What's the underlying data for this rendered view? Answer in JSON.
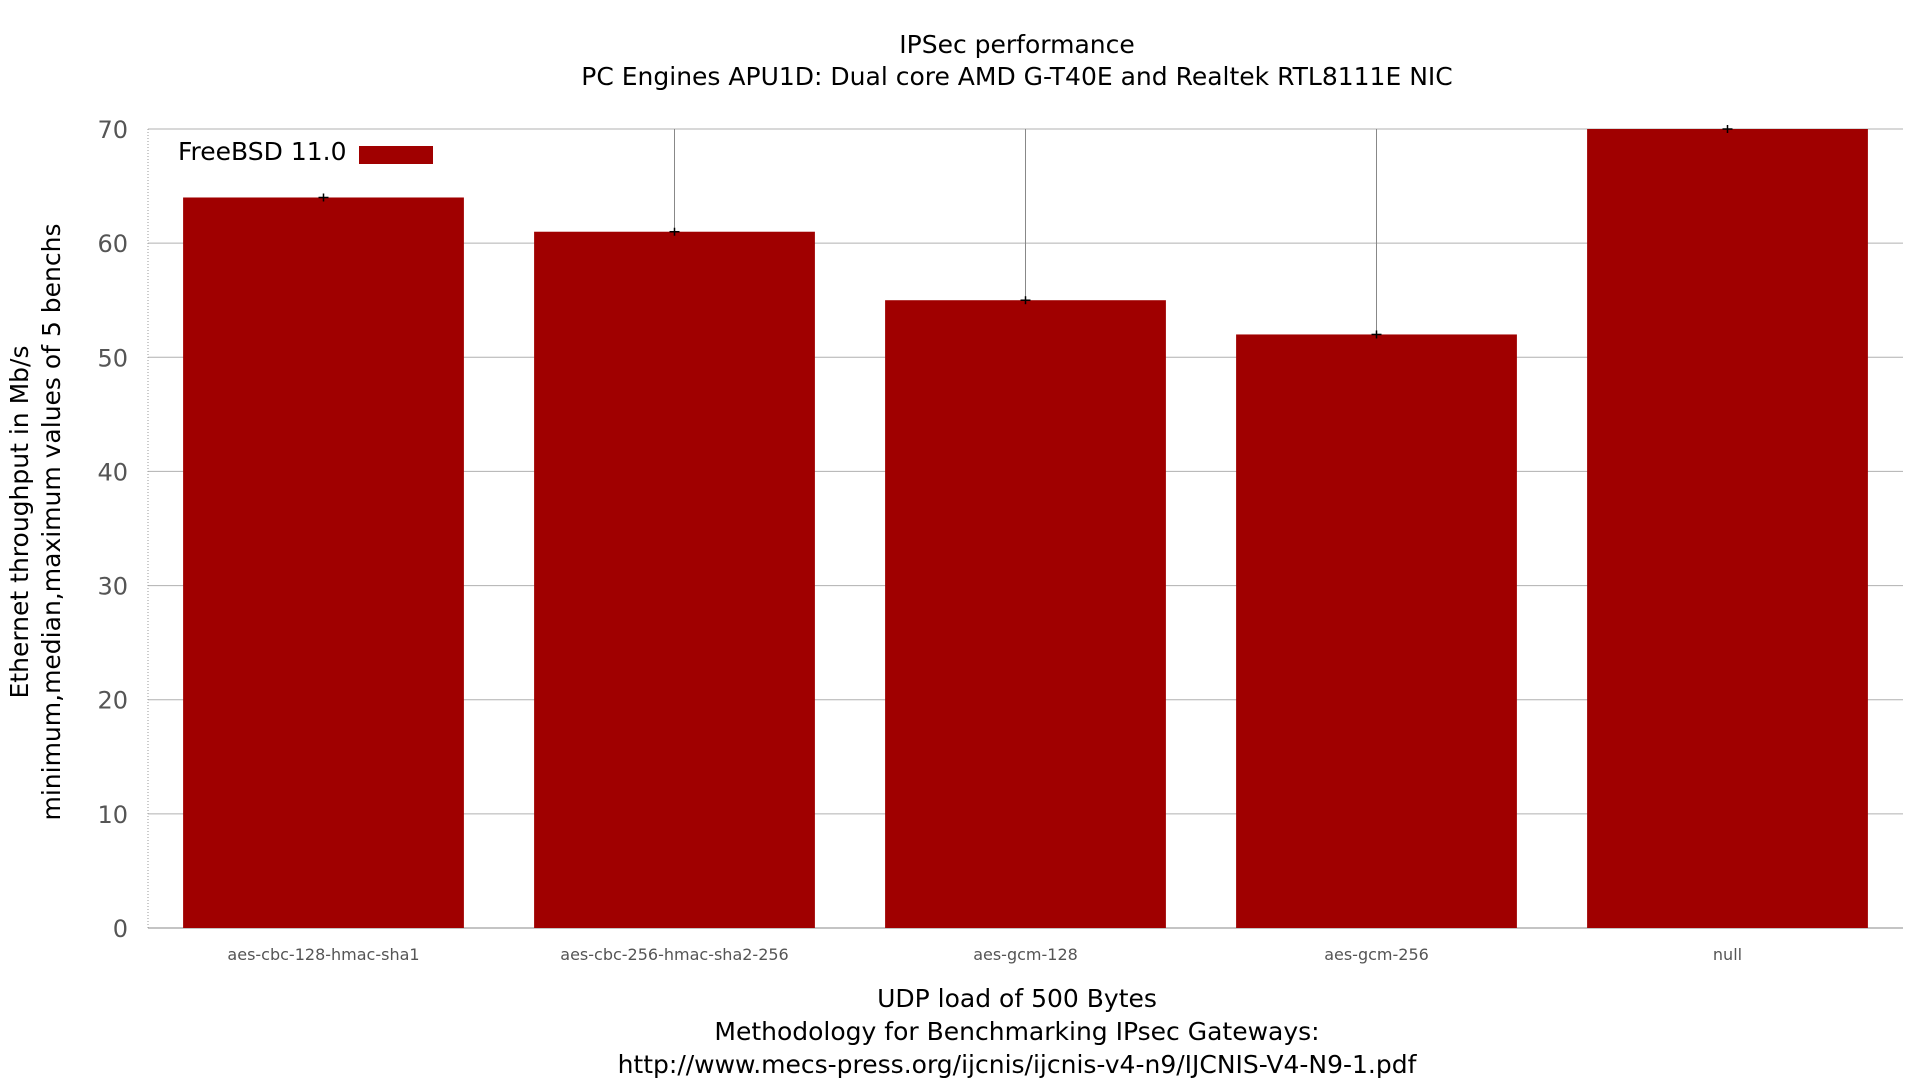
{
  "chart_data": {
    "type": "bar",
    "title": "IPSec performance",
    "subtitle": "PC Engines APU1D: Dual core AMD G-T40E and Realtek RTL8111E NIC",
    "ylabel": "Ethernet throughput in Mb/s",
    "ylabel2": "minimum,median,maximum values of 5 benchs",
    "xlabel": "UDP load of 500 Bytes",
    "xlabel2": "Methodology for Benchmarking IPsec Gateways:",
    "xlabel3": "http://www.mecs-press.org/ijcnis/ijcnis-v4-n9/IJCNIS-V4-N9-1.pdf",
    "categories": [
      "aes-cbc-128-hmac-sha1",
      "aes-cbc-256-hmac-sha2-256",
      "aes-gcm-128",
      "aes-gcm-256",
      "null"
    ],
    "series": [
      {
        "name": "FreeBSD 11.0",
        "color": "#a00000",
        "values": [
          64,
          61,
          55,
          52,
          70
        ],
        "min": [
          64,
          61,
          55,
          52,
          70
        ],
        "max": [
          64,
          70,
          70,
          70,
          70
        ]
      }
    ],
    "ylim": [
      0,
      70
    ],
    "yticks": [
      0,
      10,
      20,
      30,
      40,
      50,
      60,
      70
    ],
    "grid": true,
    "legend_position": "top-left"
  }
}
